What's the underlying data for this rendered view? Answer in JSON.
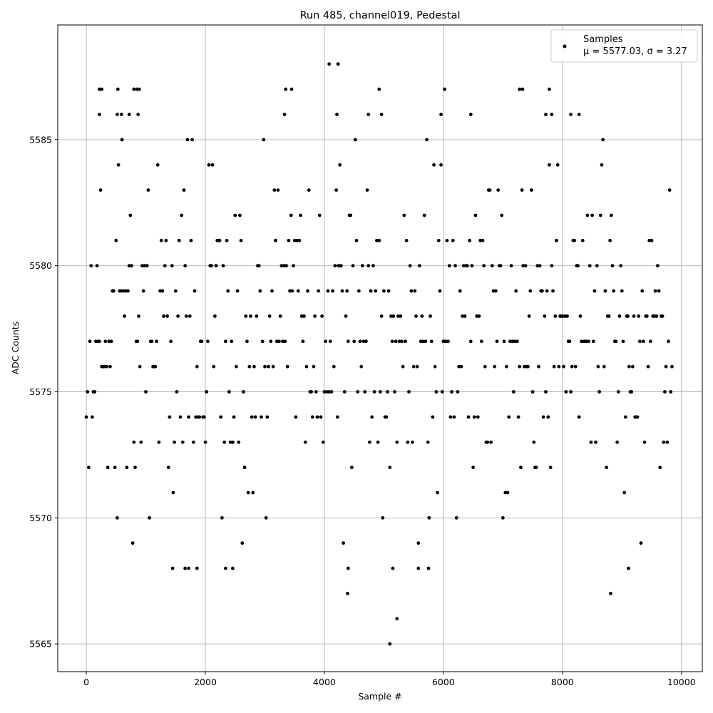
{
  "chart_data": {
    "type": "scatter",
    "title": "Run 485, channel019, Pedestal",
    "xlabel": "Sample #",
    "ylabel": "ADC Counts",
    "xlim": [
      -480,
      10350
    ],
    "ylim": [
      5563.9,
      5589.55
    ],
    "xticks": [
      0,
      2000,
      4000,
      6000,
      8000,
      10000
    ],
    "xtick_labels": [
      "0",
      "2000",
      "4000",
      "6000",
      "8000",
      "10000"
    ],
    "yticks": [
      5565,
      5570,
      5575,
      5580,
      5585
    ],
    "ytick_labels": [
      "5565",
      "5570",
      "5575",
      "5580",
      "5585"
    ],
    "grid": true,
    "legend": {
      "placement": "top-right",
      "entries": [
        {
          "name": "Samples",
          "stats": "μ = 5577.03, σ = 3.27",
          "marker": "dot",
          "color": "#000000"
        }
      ]
    },
    "series": [
      {
        "name": "Samples",
        "color": "#000000",
        "x_start": 0,
        "x_step": 20,
        "count": 493,
        "mean": 5577.03,
        "std": 3.27,
        "points": [
          [
            4080,
            5588
          ],
          [
            4230,
            5588
          ],
          [
            220,
            5587
          ],
          [
            260,
            5587
          ],
          [
            530,
            5587
          ],
          [
            800,
            5587
          ],
          [
            850,
            5587
          ],
          [
            890,
            5587
          ],
          [
            3350,
            5587
          ],
          [
            3450,
            5587
          ],
          [
            4920,
            5587
          ],
          [
            6020,
            5587
          ],
          [
            7280,
            5587
          ],
          [
            7330,
            5587
          ],
          [
            7780,
            5587
          ],
          [
            220,
            5586
          ],
          [
            520,
            5586
          ],
          [
            590,
            5586
          ],
          [
            720,
            5586
          ],
          [
            870,
            5586
          ],
          [
            3330,
            5586
          ],
          [
            4210,
            5586
          ],
          [
            4740,
            5586
          ],
          [
            4960,
            5586
          ],
          [
            5960,
            5586
          ],
          [
            6460,
            5586
          ],
          [
            7720,
            5586
          ],
          [
            7820,
            5586
          ],
          [
            8140,
            5586
          ],
          [
            8280,
            5586
          ],
          [
            5100,
            5565
          ],
          [
            5220,
            5566
          ],
          [
            4390,
            5567
          ],
          [
            8810,
            5567
          ],
          [
            1450,
            5568
          ],
          [
            1660,
            5568
          ],
          [
            1720,
            5568
          ],
          [
            1860,
            5568
          ],
          [
            2340,
            5568
          ],
          [
            2460,
            5568
          ],
          [
            4400,
            5568
          ],
          [
            5150,
            5568
          ],
          [
            5580,
            5568
          ],
          [
            5750,
            5568
          ],
          [
            9110,
            5568
          ]
        ]
      }
    ]
  }
}
